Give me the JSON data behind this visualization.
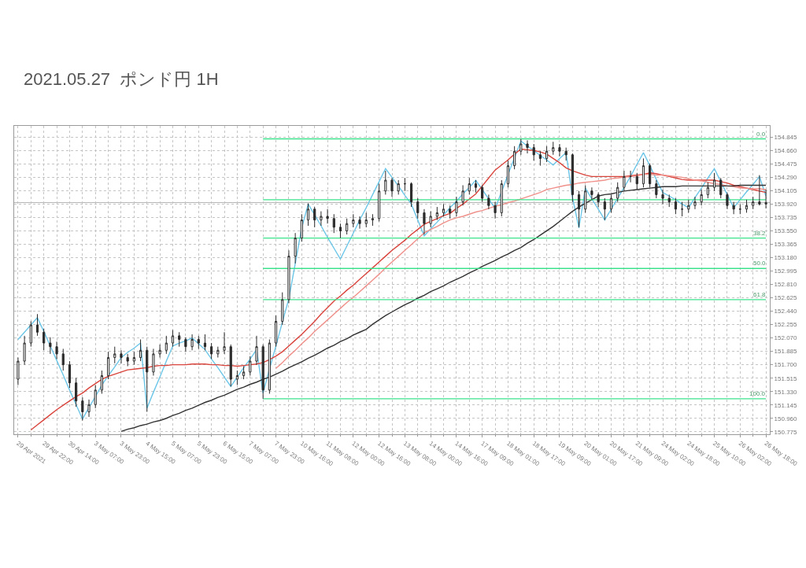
{
  "chart_data": {
    "type": "candlestick",
    "title": "2021.05.27  ポンド円 1H",
    "color": "#2b2b2b",
    "categories": [
      "29 Apr 2021",
      null,
      null,
      null,
      "29 Apr 22:00",
      null,
      null,
      null,
      "30 Apr 14:00",
      null,
      null,
      null,
      "3 May 07:00",
      null,
      null,
      null,
      "3 May 23:00",
      null,
      null,
      null,
      "4 May 15:00",
      null,
      null,
      null,
      "5 May 07:00",
      null,
      null,
      null,
      "5 May 23:00",
      null,
      null,
      null,
      "6 May 15:00",
      null,
      null,
      null,
      "7 May 07:00",
      null,
      null,
      null,
      "7 May 23:00",
      null,
      null,
      null,
      "10 May 16:00",
      null,
      null,
      null,
      "11 May 08:00",
      null,
      null,
      null,
      "12 May 00:00",
      null,
      null,
      null,
      "12 May 16:00",
      null,
      null,
      null,
      "13 May 08:00",
      null,
      null,
      null,
      "14 May 00:00",
      null,
      null,
      null,
      "14 May 16:00",
      null,
      null,
      null,
      "17 May 09:00",
      null,
      null,
      null,
      "18 May 01:00",
      null,
      null,
      null,
      "18 May 17:00",
      null,
      null,
      null,
      "19 May 09:00",
      null,
      null,
      null,
      "20 May 01:00",
      null,
      null,
      null,
      "20 May 17:00",
      null,
      null,
      null,
      "21 May 09:00",
      null,
      null,
      null,
      "24 May 02:00",
      null,
      null,
      null,
      "24 May 18:00",
      null,
      null,
      null,
      "25 May 10:00",
      null,
      null,
      null,
      "26 May 02:00",
      null,
      null,
      null,
      "26 May 18:00"
    ],
    "ohlc": [
      [
        151.5,
        151.8,
        151.42,
        151.75
      ],
      [
        151.75,
        152.1,
        151.7,
        152.0
      ],
      [
        152.0,
        152.3,
        151.95,
        152.25
      ],
      [
        152.25,
        152.4,
        152.1,
        152.15
      ],
      [
        152.15,
        152.2,
        151.9,
        152.0
      ],
      [
        152.0,
        152.08,
        151.85,
        151.95
      ],
      [
        151.95,
        152.02,
        151.78,
        151.85
      ],
      [
        151.85,
        151.92,
        151.62,
        151.7
      ],
      [
        151.7,
        151.75,
        151.38,
        151.45
      ],
      [
        151.45,
        151.52,
        151.12,
        151.2
      ],
      [
        151.2,
        151.25,
        150.93,
        151.05
      ],
      [
        151.05,
        151.22,
        150.98,
        151.15
      ],
      [
        151.15,
        151.42,
        151.1,
        151.35
      ],
      [
        151.35,
        151.62,
        151.3,
        151.55
      ],
      [
        151.55,
        151.88,
        151.5,
        151.8
      ],
      [
        151.8,
        151.95,
        151.72,
        151.85
      ],
      [
        151.85,
        151.9,
        151.72,
        151.8
      ],
      [
        151.8,
        151.85,
        151.68,
        151.75
      ],
      [
        151.75,
        151.88,
        151.7,
        151.8
      ],
      [
        151.8,
        152.05,
        151.75,
        151.9
      ],
      [
        151.9,
        151.95,
        151.05,
        151.6
      ],
      [
        151.6,
        151.92,
        151.55,
        151.85
      ],
      [
        151.85,
        151.98,
        151.8,
        151.9
      ],
      [
        151.9,
        152.1,
        151.85,
        152.0
      ],
      [
        152.0,
        152.18,
        151.95,
        152.1
      ],
      [
        152.1,
        152.15,
        151.95,
        152.05
      ],
      [
        152.05,
        152.08,
        151.88,
        151.95
      ],
      [
        151.95,
        152.12,
        151.9,
        152.05
      ],
      [
        152.05,
        152.1,
        151.92,
        152.0
      ],
      [
        152.0,
        152.12,
        151.9,
        151.95
      ],
      [
        151.95,
        152.0,
        151.78,
        151.85
      ],
      [
        151.85,
        151.95,
        151.8,
        151.9
      ],
      [
        151.9,
        152.15,
        151.85,
        151.95
      ],
      [
        151.95,
        151.98,
        151.4,
        151.5
      ],
      [
        151.5,
        151.62,
        151.42,
        151.55
      ],
      [
        151.55,
        151.68,
        151.5,
        151.6
      ],
      [
        151.6,
        151.82,
        151.55,
        151.75
      ],
      [
        151.75,
        152.1,
        151.7,
        151.95
      ],
      [
        151.95,
        151.98,
        151.23,
        151.35
      ],
      [
        151.35,
        152.05,
        151.3,
        152.0
      ],
      [
        152.0,
        152.38,
        151.95,
        152.3
      ],
      [
        152.3,
        152.7,
        152.25,
        152.6
      ],
      [
        152.6,
        153.28,
        152.55,
        153.2
      ],
      [
        153.2,
        153.52,
        153.1,
        153.45
      ],
      [
        153.45,
        153.78,
        153.4,
        153.7
      ],
      [
        153.7,
        153.93,
        153.62,
        153.85
      ],
      [
        153.85,
        153.88,
        153.6,
        153.7
      ],
      [
        153.7,
        153.82,
        153.62,
        153.75
      ],
      [
        153.75,
        153.85,
        153.65,
        153.72
      ],
      [
        153.72,
        153.78,
        153.52,
        153.6
      ],
      [
        153.6,
        153.65,
        153.45,
        153.55
      ],
      [
        153.55,
        153.72,
        153.5,
        153.65
      ],
      [
        153.65,
        153.78,
        153.6,
        153.7
      ],
      [
        153.7,
        153.75,
        153.58,
        153.65
      ],
      [
        153.65,
        153.8,
        153.6,
        153.7
      ],
      [
        153.7,
        153.78,
        153.62,
        153.72
      ],
      [
        153.72,
        154.2,
        153.68,
        154.1
      ],
      [
        154.1,
        154.38,
        154.05,
        154.25
      ],
      [
        154.25,
        154.28,
        154.02,
        154.1
      ],
      [
        154.1,
        154.25,
        154.05,
        154.2
      ],
      [
        154.2,
        154.28,
        154.1,
        154.2
      ],
      [
        154.2,
        154.22,
        153.88,
        153.95
      ],
      [
        153.95,
        154.0,
        153.72,
        153.8
      ],
      [
        153.8,
        153.85,
        153.5,
        153.65
      ],
      [
        153.65,
        153.82,
        153.6,
        153.75
      ],
      [
        153.75,
        153.88,
        153.7,
        153.8
      ],
      [
        153.8,
        153.92,
        153.75,
        153.85
      ],
      [
        153.85,
        153.9,
        153.72,
        153.8
      ],
      [
        153.8,
        154.02,
        153.75,
        153.95
      ],
      [
        153.95,
        154.18,
        153.9,
        154.1
      ],
      [
        154.1,
        154.28,
        154.05,
        154.2
      ],
      [
        154.2,
        154.25,
        154.08,
        154.15
      ],
      [
        154.15,
        154.18,
        153.95,
        154.0
      ],
      [
        154.0,
        154.05,
        153.85,
        153.9
      ],
      [
        153.9,
        153.95,
        153.72,
        153.8
      ],
      [
        153.8,
        154.25,
        153.75,
        154.2
      ],
      [
        154.2,
        154.52,
        154.15,
        154.45
      ],
      [
        154.45,
        154.72,
        154.4,
        154.65
      ],
      [
        154.65,
        154.82,
        154.6,
        154.75
      ],
      [
        154.75,
        154.8,
        154.62,
        154.7
      ],
      [
        154.7,
        154.75,
        154.52,
        154.6
      ],
      [
        154.6,
        154.65,
        154.45,
        154.55
      ],
      [
        154.55,
        154.72,
        154.5,
        154.65
      ],
      [
        154.65,
        154.78,
        154.6,
        154.7
      ],
      [
        154.7,
        154.75,
        154.58,
        154.65
      ],
      [
        154.65,
        154.7,
        154.52,
        154.6
      ],
      [
        154.6,
        154.62,
        153.95,
        154.05
      ],
      [
        154.05,
        154.1,
        153.6,
        153.85
      ],
      [
        153.85,
        154.18,
        153.8,
        154.1
      ],
      [
        154.1,
        154.15,
        153.98,
        154.05
      ],
      [
        154.05,
        154.08,
        153.88,
        153.95
      ],
      [
        153.95,
        154.0,
        153.7,
        153.85
      ],
      [
        153.85,
        154.05,
        153.8,
        154.0
      ],
      [
        154.0,
        154.22,
        153.95,
        154.15
      ],
      [
        154.15,
        154.38,
        154.1,
        154.3
      ],
      [
        154.3,
        154.38,
        154.22,
        154.3
      ],
      [
        154.3,
        154.35,
        154.12,
        154.2
      ],
      [
        154.2,
        154.55,
        154.15,
        154.45
      ],
      [
        154.45,
        154.48,
        154.15,
        154.2
      ],
      [
        154.2,
        154.25,
        154.0,
        154.05
      ],
      [
        154.05,
        154.12,
        153.92,
        154.0
      ],
      [
        154.0,
        154.05,
        153.88,
        153.95
      ],
      [
        153.95,
        154.0,
        153.78,
        153.85
      ],
      [
        153.85,
        153.95,
        153.75,
        153.85
      ],
      [
        153.85,
        153.98,
        153.8,
        153.9
      ],
      [
        153.9,
        154.02,
        153.85,
        153.95
      ],
      [
        153.95,
        154.12,
        153.9,
        154.05
      ],
      [
        154.05,
        154.22,
        154.0,
        154.15
      ],
      [
        154.15,
        154.35,
        154.1,
        154.25
      ],
      [
        154.25,
        154.28,
        154.0,
        154.05
      ],
      [
        154.05,
        154.08,
        153.85,
        153.9
      ],
      [
        153.9,
        153.95,
        153.78,
        153.85
      ],
      [
        153.85,
        153.92,
        153.78,
        153.85
      ],
      [
        153.85,
        153.98,
        153.8,
        153.9
      ],
      [
        153.9,
        154.02,
        153.85,
        153.95
      ],
      [
        153.95,
        154.32,
        153.9,
        153.92
      ],
      [
        153.92,
        154.12,
        153.86,
        153.94
      ]
    ],
    "series": [
      {
        "type": "line",
        "color": "#6cc6e8",
        "values": [
          152.05,
          152.15,
          152.25,
          152.35,
          152.16,
          151.96,
          151.76,
          151.56,
          151.35,
          151.15,
          150.95,
          151.11,
          151.26,
          151.42,
          151.55,
          151.67,
          151.8,
          151.87,
          151.93,
          152.0,
          151.1,
          151.32,
          151.53,
          151.75,
          151.96,
          152.0,
          152.03,
          152.07,
          151.99,
          151.91,
          151.78,
          151.66,
          151.53,
          151.4,
          151.53,
          151.66,
          151.78,
          151.91,
          151.31,
          151.64,
          151.96,
          152.29,
          152.61,
          153.1,
          153.59,
          153.92,
          153.77,
          153.62,
          153.46,
          153.31,
          153.16,
          153.34,
          153.52,
          153.7,
          153.87,
          154.05,
          154.23,
          154.41,
          154.29,
          154.17,
          154.04,
          153.92,
          153.7,
          153.48,
          153.58,
          153.67,
          153.77,
          153.87,
          153.96,
          154.06,
          154.15,
          154.25,
          154.12,
          153.99,
          153.86,
          154.09,
          154.33,
          154.56,
          154.79,
          154.72,
          154.66,
          154.59,
          154.53,
          154.46,
          154.55,
          154.63,
          154.01,
          153.59,
          154.14,
          153.99,
          153.85,
          153.7,
          153.85,
          154.0,
          154.15,
          154.3,
          154.47,
          154.63,
          154.45,
          154.26,
          154.08,
          154.03,
          153.98,
          153.92,
          153.87,
          154.01,
          154.14,
          154.28,
          154.41,
          154.23,
          154.05,
          153.87,
          153.98,
          154.09,
          154.19,
          154.3,
          154.03
        ]
      },
      {
        "type": "line",
        "color": "#d9443c",
        "values": [
          null,
          null,
          150.8,
          150.87,
          150.94,
          151.01,
          151.08,
          151.14,
          151.2,
          151.26,
          151.31,
          151.38,
          151.44,
          151.5,
          151.54,
          151.57,
          151.6,
          151.63,
          151.64,
          151.65,
          151.66,
          151.68,
          151.69,
          151.69,
          151.7,
          151.7,
          151.7,
          151.71,
          151.71,
          151.71,
          151.7,
          151.7,
          151.69,
          151.69,
          151.68,
          151.69,
          151.7,
          151.71,
          151.73,
          151.77,
          151.82,
          151.88,
          151.96,
          152.04,
          152.12,
          152.21,
          152.3,
          152.4,
          152.49,
          152.58,
          152.65,
          152.73,
          152.8,
          152.88,
          152.96,
          153.04,
          153.12,
          153.2,
          153.28,
          153.35,
          153.42,
          153.5,
          153.57,
          153.64,
          153.68,
          153.72,
          153.76,
          153.79,
          153.86,
          153.92,
          153.99,
          154.06,
          154.17,
          154.28,
          154.39,
          154.46,
          154.53,
          154.61,
          154.68,
          154.67,
          154.66,
          154.64,
          154.61,
          154.55,
          154.49,
          154.42,
          154.38,
          154.35,
          154.32,
          154.3,
          154.3,
          154.3,
          154.3,
          154.3,
          154.3,
          154.31,
          154.32,
          154.33,
          154.35,
          154.34,
          154.32,
          154.3,
          154.28,
          154.26,
          154.25,
          154.25,
          154.25,
          154.25,
          154.25,
          154.23,
          154.21,
          154.18,
          154.16,
          154.14,
          154.12,
          154.1,
          154.08
        ]
      },
      {
        "type": "line",
        "color": "#f0908a",
        "values": [
          null,
          null,
          null,
          null,
          null,
          null,
          null,
          null,
          null,
          null,
          null,
          null,
          null,
          null,
          null,
          null,
          null,
          null,
          null,
          null,
          null,
          null,
          null,
          null,
          null,
          null,
          null,
          null,
          null,
          null,
          null,
          null,
          null,
          null,
          null,
          null,
          null,
          null,
          null,
          null,
          151.65,
          151.73,
          151.82,
          151.9,
          151.99,
          152.07,
          152.16,
          152.24,
          152.32,
          152.4,
          152.48,
          152.56,
          152.63,
          152.71,
          152.79,
          152.87,
          152.95,
          153.04,
          153.12,
          153.2,
          153.28,
          153.36,
          153.44,
          153.52,
          153.57,
          153.61,
          153.66,
          153.7,
          153.73,
          153.75,
          153.78,
          153.81,
          153.83,
          153.86,
          153.89,
          153.91,
          153.94,
          153.96,
          153.99,
          154.02,
          154.05,
          154.08,
          154.12,
          154.14,
          154.16,
          154.18,
          154.19,
          154.21,
          154.22,
          154.23,
          154.24,
          154.25,
          154.27,
          154.28,
          154.29,
          154.3,
          154.31,
          154.33,
          154.33,
          154.32,
          154.32,
          154.31,
          154.3,
          154.29,
          154.27,
          154.25,
          154.24,
          154.22,
          154.2,
          154.19,
          154.17,
          154.16,
          154.14,
          154.14,
          154.13,
          154.13,
          154.12
        ]
      },
      {
        "type": "line",
        "color": "#333333",
        "values": [
          null,
          null,
          null,
          null,
          null,
          null,
          null,
          null,
          null,
          null,
          null,
          null,
          null,
          null,
          null,
          null,
          150.78,
          150.81,
          150.83,
          150.86,
          150.88,
          150.91,
          150.93,
          150.96,
          151.0,
          151.03,
          151.07,
          151.1,
          151.14,
          151.18,
          151.21,
          151.25,
          151.28,
          151.32,
          151.36,
          151.39,
          151.43,
          151.46,
          151.5,
          151.53,
          151.57,
          151.61,
          151.66,
          151.7,
          151.74,
          151.79,
          151.83,
          151.88,
          151.93,
          151.97,
          152.02,
          152.06,
          152.11,
          152.15,
          152.19,
          152.26,
          152.32,
          152.38,
          152.43,
          152.48,
          152.53,
          152.57,
          152.62,
          152.66,
          152.71,
          152.75,
          152.79,
          152.84,
          152.88,
          152.92,
          152.97,
          153.01,
          153.06,
          153.1,
          153.14,
          153.19,
          153.23,
          153.28,
          153.32,
          153.38,
          153.43,
          153.49,
          153.55,
          153.61,
          153.68,
          153.75,
          153.82,
          153.88,
          153.93,
          153.98,
          154.03,
          154.05,
          154.06,
          154.08,
          154.1,
          154.11,
          154.12,
          154.13,
          154.14,
          154.15,
          154.16,
          154.16,
          154.16,
          154.17,
          154.17,
          154.17,
          154.17,
          154.17,
          154.17,
          154.17,
          154.17,
          154.17,
          154.18,
          154.18,
          154.18,
          154.18,
          154.18
        ]
      },
      {
        "type": "line",
        "color": "#3ce38c",
        "values": [
          null,
          null,
          null,
          null,
          null,
          null,
          null,
          null,
          null,
          null,
          null,
          null,
          null,
          null,
          null,
          null,
          null,
          null,
          null,
          null,
          null,
          null,
          null,
          null,
          null,
          null,
          null,
          null,
          null,
          null,
          null,
          null,
          null,
          null,
          null,
          null,
          null,
          null,
          154.82,
          154.82,
          154.82,
          154.82,
          154.82,
          154.82,
          154.82,
          154.82,
          154.82,
          154.82,
          154.82,
          154.82,
          154.82,
          154.82,
          154.82,
          154.82,
          154.82,
          154.82,
          154.82,
          154.82,
          154.82,
          154.82,
          154.82,
          154.82,
          154.82,
          154.82,
          154.82,
          154.82,
          154.82,
          154.82,
          154.82,
          154.82,
          154.82,
          154.82,
          154.82,
          154.82,
          154.82,
          154.82,
          154.82,
          154.82,
          154.82,
          154.82,
          154.82,
          154.82,
          154.82,
          154.82,
          154.82,
          154.82,
          154.82,
          154.82,
          154.82,
          154.82,
          154.82,
          154.82,
          154.82,
          154.82,
          154.82,
          154.82,
          154.82,
          154.82,
          154.82,
          154.82,
          154.82,
          154.82,
          154.82,
          154.82,
          154.82,
          154.82,
          154.82,
          154.82,
          154.82,
          154.82,
          154.82,
          154.82,
          154.82,
          154.82,
          154.82,
          154.82,
          154.82
        ]
      },
      {
        "type": "line",
        "color": "#3ce38c",
        "values": [
          null,
          null,
          null,
          null,
          null,
          null,
          null,
          null,
          null,
          null,
          null,
          null,
          null,
          null,
          null,
          null,
          null,
          null,
          null,
          null,
          null,
          null,
          null,
          null,
          null,
          null,
          null,
          null,
          null,
          null,
          null,
          null,
          null,
          null,
          null,
          null,
          null,
          null,
          153.98,
          153.98,
          153.98,
          153.98,
          153.98,
          153.98,
          153.98,
          153.98,
          153.98,
          153.98,
          153.98,
          153.98,
          153.98,
          153.98,
          153.98,
          153.98,
          153.98,
          153.98,
          153.98,
          153.98,
          153.98,
          153.98,
          153.98,
          153.98,
          153.98,
          153.98,
          153.98,
          153.98,
          153.98,
          153.98,
          153.98,
          153.98,
          153.98,
          153.98,
          153.98,
          153.98,
          153.98,
          153.98,
          153.98,
          153.98,
          153.98,
          153.98,
          153.98,
          153.98,
          153.98,
          153.98,
          153.98,
          153.98,
          153.98,
          153.98,
          153.98,
          153.98,
          153.98,
          153.98,
          153.98,
          153.98,
          153.98,
          153.98,
          153.98,
          153.98,
          153.98,
          153.98,
          153.98,
          153.98,
          153.98,
          153.98,
          153.98,
          153.98,
          153.98,
          153.98,
          153.98,
          153.98,
          153.98,
          153.98,
          153.98,
          153.98,
          153.98,
          153.98,
          153.98
        ]
      },
      {
        "type": "line",
        "color": "#3ce38c",
        "values": [
          null,
          null,
          null,
          null,
          null,
          null,
          null,
          null,
          null,
          null,
          null,
          null,
          null,
          null,
          null,
          null,
          null,
          null,
          null,
          null,
          null,
          null,
          null,
          null,
          null,
          null,
          null,
          null,
          null,
          null,
          null,
          null,
          null,
          null,
          null,
          null,
          null,
          null,
          153.45,
          153.45,
          153.45,
          153.45,
          153.45,
          153.45,
          153.45,
          153.45,
          153.45,
          153.45,
          153.45,
          153.45,
          153.45,
          153.45,
          153.45,
          153.45,
          153.45,
          153.45,
          153.45,
          153.45,
          153.45,
          153.45,
          153.45,
          153.45,
          153.45,
          153.45,
          153.45,
          153.45,
          153.45,
          153.45,
          153.45,
          153.45,
          153.45,
          153.45,
          153.45,
          153.45,
          153.45,
          153.45,
          153.45,
          153.45,
          153.45,
          153.45,
          153.45,
          153.45,
          153.45,
          153.45,
          153.45,
          153.45,
          153.45,
          153.45,
          153.45,
          153.45,
          153.45,
          153.45,
          153.45,
          153.45,
          153.45,
          153.45,
          153.45,
          153.45,
          153.45,
          153.45,
          153.45,
          153.45,
          153.45,
          153.45,
          153.45,
          153.45,
          153.45,
          153.45,
          153.45,
          153.45,
          153.45,
          153.45,
          153.45,
          153.45,
          153.45,
          153.45,
          153.45
        ]
      },
      {
        "type": "line",
        "color": "#3ce38c",
        "values": [
          null,
          null,
          null,
          null,
          null,
          null,
          null,
          null,
          null,
          null,
          null,
          null,
          null,
          null,
          null,
          null,
          null,
          null,
          null,
          null,
          null,
          null,
          null,
          null,
          null,
          null,
          null,
          null,
          null,
          null,
          null,
          null,
          null,
          null,
          null,
          null,
          null,
          null,
          153.03,
          153.03,
          153.03,
          153.03,
          153.03,
          153.03,
          153.03,
          153.03,
          153.03,
          153.03,
          153.03,
          153.03,
          153.03,
          153.03,
          153.03,
          153.03,
          153.03,
          153.03,
          153.03,
          153.03,
          153.03,
          153.03,
          153.03,
          153.03,
          153.03,
          153.03,
          153.03,
          153.03,
          153.03,
          153.03,
          153.03,
          153.03,
          153.03,
          153.03,
          153.03,
          153.03,
          153.03,
          153.03,
          153.03,
          153.03,
          153.03,
          153.03,
          153.03,
          153.03,
          153.03,
          153.03,
          153.03,
          153.03,
          153.03,
          153.03,
          153.03,
          153.03,
          153.03,
          153.03,
          153.03,
          153.03,
          153.03,
          153.03,
          153.03,
          153.03,
          153.03,
          153.03,
          153.03,
          153.03,
          153.03,
          153.03,
          153.03,
          153.03,
          153.03,
          153.03,
          153.03,
          153.03,
          153.03,
          153.03,
          153.03,
          153.03,
          153.03,
          153.03,
          153.03
        ]
      },
      {
        "type": "line",
        "color": "#3ce38c",
        "values": [
          null,
          null,
          null,
          null,
          null,
          null,
          null,
          null,
          null,
          null,
          null,
          null,
          null,
          null,
          null,
          null,
          null,
          null,
          null,
          null,
          null,
          null,
          null,
          null,
          null,
          null,
          null,
          null,
          null,
          null,
          null,
          null,
          null,
          null,
          null,
          null,
          null,
          null,
          152.6,
          152.6,
          152.6,
          152.6,
          152.6,
          152.6,
          152.6,
          152.6,
          152.6,
          152.6,
          152.6,
          152.6,
          152.6,
          152.6,
          152.6,
          152.6,
          152.6,
          152.6,
          152.6,
          152.6,
          152.6,
          152.6,
          152.6,
          152.6,
          152.6,
          152.6,
          152.6,
          152.6,
          152.6,
          152.6,
          152.6,
          152.6,
          152.6,
          152.6,
          152.6,
          152.6,
          152.6,
          152.6,
          152.6,
          152.6,
          152.6,
          152.6,
          152.6,
          152.6,
          152.6,
          152.6,
          152.6,
          152.6,
          152.6,
          152.6,
          152.6,
          152.6,
          152.6,
          152.6,
          152.6,
          152.6,
          152.6,
          152.6,
          152.6,
          152.6,
          152.6,
          152.6,
          152.6,
          152.6,
          152.6,
          152.6,
          152.6,
          152.6,
          152.6,
          152.6,
          152.6,
          152.6,
          152.6,
          152.6,
          152.6,
          152.6,
          152.6,
          152.6,
          152.6
        ]
      },
      {
        "type": "line",
        "color": "#3ce38c",
        "values": [
          null,
          null,
          null,
          null,
          null,
          null,
          null,
          null,
          null,
          null,
          null,
          null,
          null,
          null,
          null,
          null,
          null,
          null,
          null,
          null,
          null,
          null,
          null,
          null,
          null,
          null,
          null,
          null,
          null,
          null,
          null,
          null,
          null,
          null,
          null,
          null,
          null,
          null,
          151.23,
          151.23,
          151.23,
          151.23,
          151.23,
          151.23,
          151.23,
          151.23,
          151.23,
          151.23,
          151.23,
          151.23,
          151.23,
          151.23,
          151.23,
          151.23,
          151.23,
          151.23,
          151.23,
          151.23,
          151.23,
          151.23,
          151.23,
          151.23,
          151.23,
          151.23,
          151.23,
          151.23,
          151.23,
          151.23,
          151.23,
          151.23,
          151.23,
          151.23,
          151.23,
          151.23,
          151.23,
          151.23,
          151.23,
          151.23,
          151.23,
          151.23,
          151.23,
          151.23,
          151.23,
          151.23,
          151.23,
          151.23,
          151.23,
          151.23,
          151.23,
          151.23,
          151.23,
          151.23,
          151.23,
          151.23,
          151.23,
          151.23,
          151.23,
          151.23,
          151.23,
          151.23,
          151.23,
          151.23,
          151.23,
          151.23,
          151.23,
          151.23,
          151.23,
          151.23,
          151.23,
          151.23,
          151.23,
          151.23,
          151.23,
          151.23,
          151.23,
          151.23,
          151.23
        ]
      }
    ],
    "annotations": [
      {
        "text": "0.0",
        "y": 154.82
      },
      {
        "text": "38.2",
        "y": 153.45
      },
      {
        "text": "50.0",
        "y": 153.03
      },
      {
        "text": "61.8",
        "y": 152.6
      },
      {
        "text": "100.0",
        "y": 151.23
      }
    ],
    "ref_lines": [
      {
        "axis": "y",
        "value": 153.94,
        "color": "#b4b4b4"
      }
    ],
    "ylim": [
      150.74,
      155.0
    ],
    "yticks": [
      {
        "value": 150.775,
        "label": "150.775"
      },
      {
        "value": 150.96,
        "label": "150.960"
      },
      {
        "value": 151.145,
        "label": "151.145"
      },
      {
        "value": 151.33,
        "label": "151.330"
      },
      {
        "value": 151.515,
        "label": "151.515"
      },
      {
        "value": 151.7,
        "label": "151.700"
      },
      {
        "value": 151.885,
        "label": "151.885"
      },
      {
        "value": 152.07,
        "label": "152.070"
      },
      {
        "value": 152.255,
        "label": "152.255"
      },
      {
        "value": 152.44,
        "label": "152.440"
      },
      {
        "value": 152.625,
        "label": "152.625"
      },
      {
        "value": 152.81,
        "label": "152.810"
      },
      {
        "value": 152.995,
        "label": "152.995"
      },
      {
        "value": 153.18,
        "label": "153.180"
      },
      {
        "value": 153.365,
        "label": "153.365"
      },
      {
        "value": 153.55,
        "label": "153.550"
      },
      {
        "value": 153.735,
        "label": "153.735"
      },
      {
        "value": 153.92,
        "label": "153.920"
      },
      {
        "value": 154.105,
        "label": "154.105"
      },
      {
        "value": 154.29,
        "label": "154.290"
      },
      {
        "value": 154.475,
        "label": "154.475"
      },
      {
        "value": 154.66,
        "label": "154.660"
      },
      {
        "value": 154.845,
        "label": "154.845"
      }
    ],
    "grid": true
  }
}
